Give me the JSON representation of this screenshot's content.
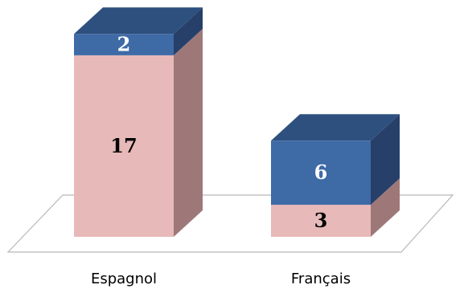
{
  "chart_data": {
    "type": "bar",
    "stacked": true,
    "style": "3d",
    "categories": [
      "Espagnol",
      "Français"
    ],
    "series": [
      {
        "values": [
          17,
          3
        ],
        "color": "#e8b9b9",
        "side_color": "#9e7878",
        "label_color": "#000000"
      },
      {
        "values": [
          2,
          6
        ],
        "color": "#3e6aa6",
        "side_color": "#27406a",
        "top_color": "#2e507f",
        "label_color": "#ffffff"
      }
    ],
    "xlabel": "",
    "ylabel": "",
    "title": "",
    "grid": false,
    "legend": false
  }
}
